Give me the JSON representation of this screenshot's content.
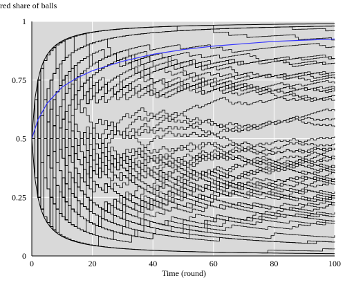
{
  "chart_data": {
    "type": "line",
    "ylabel": "red share of balls",
    "xlabel": "Time (round)",
    "xlim": [
      0,
      100
    ],
    "ylim": [
      0,
      1
    ],
    "x_ticks": [
      "0",
      "20",
      "40",
      "60",
      "80",
      "100"
    ],
    "y_ticks": [
      "0",
      "0.25",
      "0.5",
      "0.75",
      "1"
    ],
    "grid": true,
    "colors": {
      "plot_background": "#d9d9d9",
      "grid": "#ffffff",
      "paths": "#000000",
      "highlighted_path": "#3333ff"
    },
    "lattice": {
      "start": [
        0,
        0.5
      ],
      "description_values": {
        "paths_shown": 60
      }
    },
    "highlighted_series": {
      "x": [
        0,
        2,
        5,
        10,
        15,
        20,
        30,
        40,
        50,
        60,
        70,
        80,
        90,
        100
      ],
      "y": [
        0.5,
        0.58,
        0.65,
        0.72,
        0.76,
        0.79,
        0.83,
        0.86,
        0.88,
        0.895,
        0.905,
        0.915,
        0.92,
        0.925
      ]
    }
  }
}
